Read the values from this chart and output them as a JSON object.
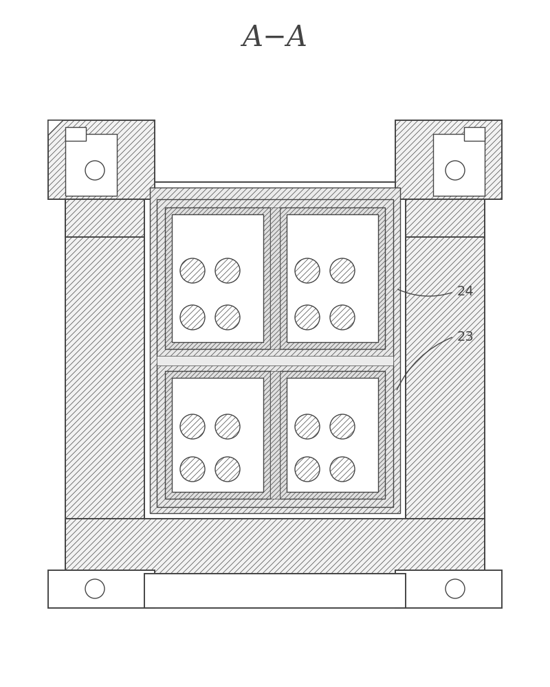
{
  "title": "A−A",
  "title_fontsize": 30,
  "bg_color": "#ffffff",
  "line_color": "#444444",
  "label_24": "24",
  "label_23": "23",
  "fig_width": 8.0,
  "fig_height": 10.0
}
